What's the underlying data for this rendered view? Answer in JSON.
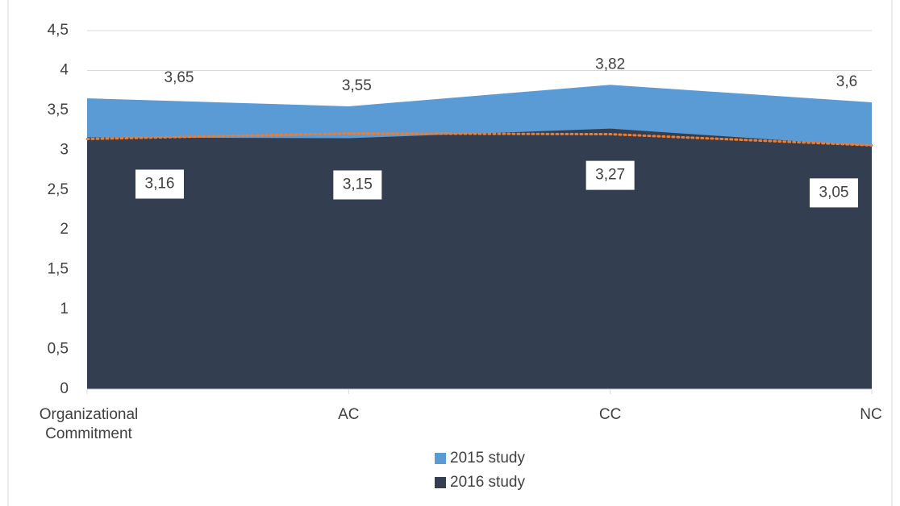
{
  "chart_data": {
    "type": "area",
    "categories": [
      "Organizational Commitment",
      "AC",
      "CC",
      "NC"
    ],
    "series": [
      {
        "name": "2015 study",
        "color": "#5b9bd5",
        "values": [
          3.65,
          3.55,
          3.82,
          3.6
        ],
        "value_labels": [
          "3,65",
          "3,55",
          "3,82",
          "3,6"
        ]
      },
      {
        "name": "2016 study",
        "color": "#333f50",
        "values": [
          3.16,
          3.15,
          3.27,
          3.05
        ],
        "value_labels": [
          "3,16",
          "3,15",
          "3,27",
          "3,05"
        ]
      },
      {
        "type": "line",
        "color": "#ed7d31",
        "values": [
          3.14,
          3.21,
          3.2,
          3.06
        ]
      }
    ],
    "ylim": [
      0,
      4.5
    ],
    "yticks": [
      0,
      {
        "value": 0.5,
        "label": "0,5"
      },
      1,
      {
        "value": 1.5,
        "label": "1,5"
      },
      2,
      {
        "value": 2.5,
        "label": "2,5"
      },
      3,
      {
        "value": 3.5,
        "label": "3,5"
      },
      4,
      {
        "value": 4.5,
        "label": "4,5"
      }
    ],
    "grid": true,
    "legend": "bottom"
  }
}
